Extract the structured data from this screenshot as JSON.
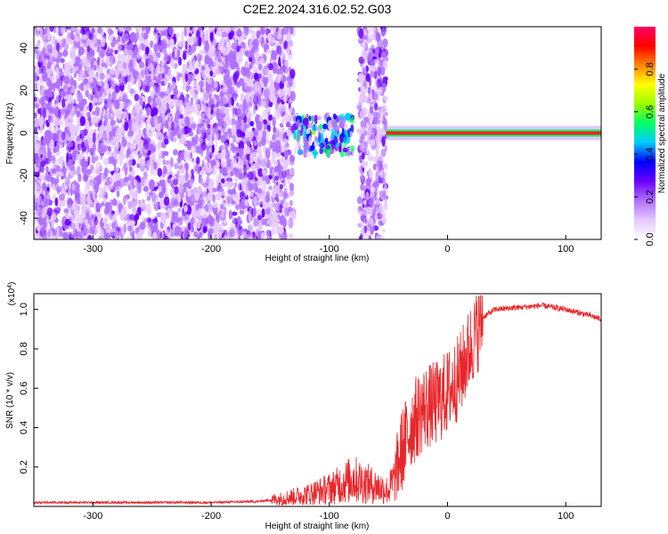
{
  "page_title": "C2E2.2024.316.02.52.G03",
  "chart_data": [
    {
      "type": "heatmap",
      "xlabel": "Height of straight line (km)",
      "ylabel": "Frequency (Hz)",
      "xlim": [
        -350,
        130
      ],
      "ylim": [
        -50,
        50
      ],
      "xticks": [
        -300,
        -200,
        -100,
        0,
        100
      ],
      "yticks": [
        -40,
        -20,
        0,
        20,
        40
      ],
      "colorbar": {
        "label": "Normalized spectral amplitude",
        "range": [
          0,
          1
        ],
        "ticks": [
          0.0,
          0.2,
          0.4,
          0.6,
          0.8
        ],
        "colors": [
          "#ffffff",
          "#e6c8ff",
          "#b070ff",
          "#6a00ff",
          "#0000ff",
          "#00ccff",
          "#00ff66",
          "#99ff00",
          "#ffff00",
          "#ff8800",
          "#ff0000",
          "#ff0066"
        ]
      },
      "regions": [
        {
          "x": [
            -350,
            -130
          ],
          "freq": [
            -50,
            50
          ],
          "amplitude": 0.15,
          "description_kind": "broadband noise"
        },
        {
          "x": [
            -130,
            -80
          ],
          "freq": [
            -10,
            8
          ],
          "amplitude": 0.35
        },
        {
          "x": [
            -75,
            -52
          ],
          "freq": [
            -50,
            50
          ],
          "amplitude": 0.15
        },
        {
          "x": [
            -52,
            130
          ],
          "freq": [
            -2,
            2
          ],
          "amplitude": 0.95,
          "center_freq": 0
        }
      ]
    },
    {
      "type": "line",
      "xlabel": "Height of straight line (km)",
      "ylabel": "SNR (10 * v/v)",
      "yscale_label": "(x10",
      "yscale_exp": "4",
      "xlim": [
        -350,
        130
      ],
      "ylim": [
        0,
        1.08
      ],
      "xticks": [
        -300,
        -200,
        -100,
        0,
        100
      ],
      "yticks": [
        0.2,
        0.4,
        0.6,
        0.8,
        1.0
      ],
      "color": "#e8262a",
      "x": [
        -350,
        -300,
        -250,
        -200,
        -160,
        -140,
        -120,
        -100,
        -80,
        -60,
        -50,
        -45,
        -40,
        -30,
        -20,
        -10,
        0,
        10,
        20,
        30,
        40,
        60,
        80,
        100,
        120,
        130
      ],
      "y": [
        0.02,
        0.02,
        0.02,
        0.02,
        0.025,
        0.04,
        0.06,
        0.09,
        0.14,
        0.1,
        0.08,
        0.14,
        0.26,
        0.42,
        0.5,
        0.52,
        0.58,
        0.66,
        0.82,
        0.96,
        1.0,
        1.01,
        1.02,
        1.0,
        0.97,
        0.95
      ]
    }
  ]
}
